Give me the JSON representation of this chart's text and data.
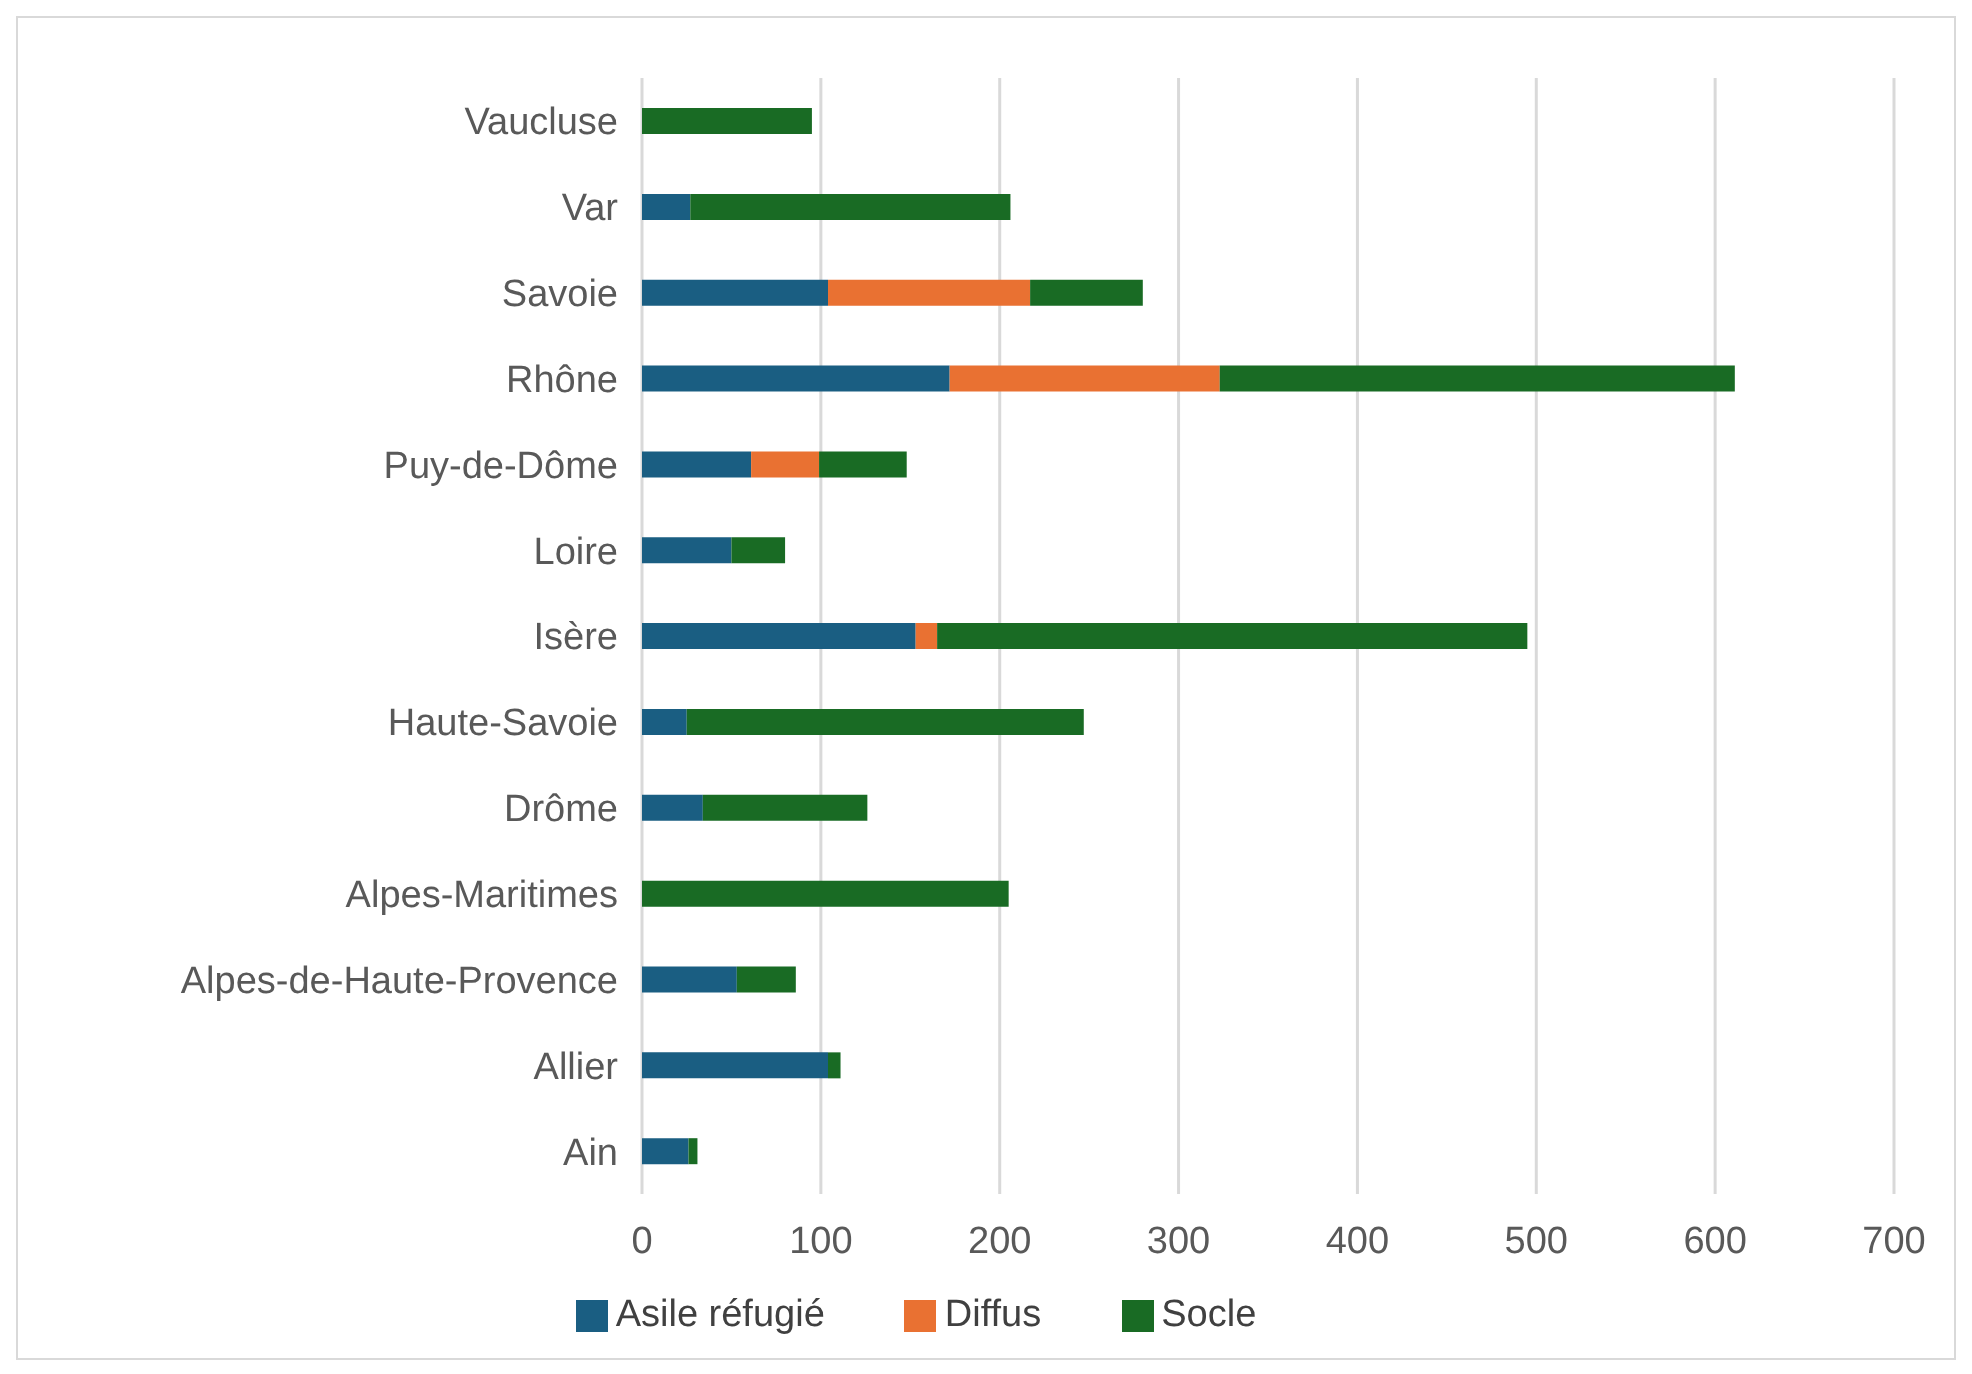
{
  "chart_data": {
    "type": "bar",
    "orientation": "horizontal",
    "stacked": true,
    "categories": [
      "Vaucluse",
      "Var",
      "Savoie",
      "Rhône",
      "Puy-de-Dôme",
      "Loire",
      "Isère",
      "Haute-Savoie",
      "Drôme",
      "Alpes-Maritimes",
      "Alpes-de-Haute-Provence",
      "Allier",
      "Ain"
    ],
    "series": [
      {
        "name": "Asile réfugié",
        "color": "#1a5e82",
        "values": [
          0,
          27,
          104,
          172,
          61,
          50,
          153,
          25,
          34,
          0,
          53,
          104,
          26
        ]
      },
      {
        "name": "Diffus",
        "color": "#e97132",
        "values": [
          0,
          0,
          113,
          151,
          38,
          0,
          12,
          0,
          0,
          0,
          0,
          0,
          0
        ]
      },
      {
        "name": "Socle",
        "color": "#196b24",
        "values": [
          95,
          179,
          63,
          288,
          49,
          30,
          330,
          222,
          92,
          205,
          33,
          7,
          5
        ]
      }
    ],
    "xlim": [
      0,
      700
    ],
    "xticks": [
      0,
      100,
      200,
      300,
      400,
      500,
      600,
      700
    ],
    "grid": "x",
    "legend": "bottom"
  }
}
